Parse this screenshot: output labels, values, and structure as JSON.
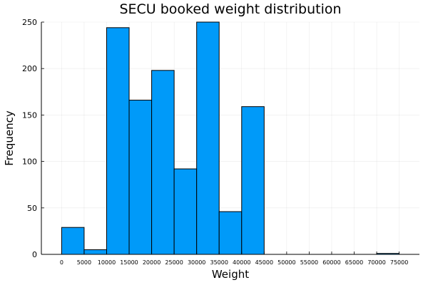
{
  "chart_data": {
    "type": "bar",
    "title": "SECU booked weight distribution",
    "xlabel": "Weight",
    "ylabel": "Frequency",
    "bin_width": 5000,
    "bins": [
      {
        "start": 0,
        "end": 5000,
        "count": 29
      },
      {
        "start": 5000,
        "end": 10000,
        "count": 5
      },
      {
        "start": 10000,
        "end": 15000,
        "count": 244
      },
      {
        "start": 15000,
        "end": 20000,
        "count": 166
      },
      {
        "start": 20000,
        "end": 25000,
        "count": 198
      },
      {
        "start": 25000,
        "end": 30000,
        "count": 92
      },
      {
        "start": 30000,
        "end": 35000,
        "count": 250
      },
      {
        "start": 35000,
        "end": 40000,
        "count": 46
      },
      {
        "start": 40000,
        "end": 45000,
        "count": 159
      },
      {
        "start": 45000,
        "end": 50000,
        "count": 0
      },
      {
        "start": 50000,
        "end": 55000,
        "count": 0
      },
      {
        "start": 55000,
        "end": 60000,
        "count": 0
      },
      {
        "start": 60000,
        "end": 65000,
        "count": 0
      },
      {
        "start": 65000,
        "end": 70000,
        "count": 0
      },
      {
        "start": 70000,
        "end": 75000,
        "count": 1
      }
    ],
    "xlim": [
      -4500,
      79500
    ],
    "ylim": [
      0,
      250
    ],
    "xticks": [
      0,
      5000,
      10000,
      15000,
      20000,
      25000,
      30000,
      35000,
      40000,
      45000,
      50000,
      55000,
      60000,
      65000,
      70000,
      75000
    ],
    "yticks": [
      0,
      50,
      100,
      150,
      200,
      250
    ],
    "grid": true,
    "legend": "none",
    "colors": {
      "bar_fill": "#009AF9",
      "bar_edge": "#000000"
    }
  }
}
